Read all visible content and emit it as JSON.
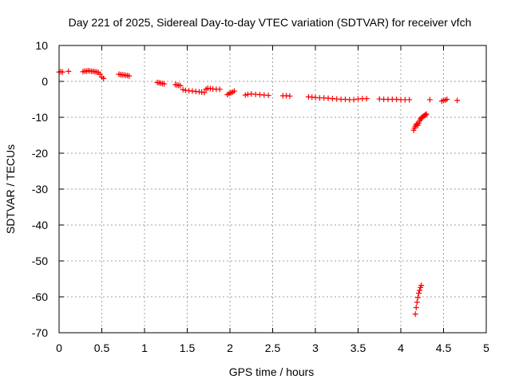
{
  "chart_data": {
    "type": "scatter",
    "title": "Day 221 of 2025, Sidereal Day-to-day VTEC variation (SDTVAR) for receiver vfch",
    "xlabel": "GPS time / hours",
    "ylabel": "SDTVAR / TECUs",
    "xlim": [
      0,
      5
    ],
    "ylim": [
      -70,
      10
    ],
    "xticks": [
      0,
      0.5,
      1,
      1.5,
      2,
      2.5,
      3,
      3.5,
      4,
      4.5,
      5
    ],
    "xtick_labels": [
      "0",
      "0.5",
      "1",
      "1.5",
      "2",
      "2.5",
      "3",
      "3.5",
      "4",
      "4.5",
      "5"
    ],
    "yticks": [
      10,
      0,
      -10,
      -20,
      -30,
      -40,
      -50,
      -60,
      -70
    ],
    "ytick_labels": [
      "10",
      "0",
      "-10",
      "-20",
      "-30",
      "-40",
      "-50",
      "-60",
      "-70"
    ],
    "grid": true,
    "marker": "+",
    "color": "#ff0000",
    "series": [
      {
        "name": "vfch",
        "x": [
          0.0,
          0.02,
          0.04,
          0.11,
          0.28,
          0.3,
          0.32,
          0.34,
          0.36,
          0.38,
          0.4,
          0.42,
          0.44,
          0.46,
          0.48,
          0.5,
          0.52,
          0.7,
          0.72,
          0.74,
          0.76,
          0.78,
          0.8,
          0.82,
          1.15,
          1.17,
          1.19,
          1.21,
          1.23,
          1.36,
          1.38,
          1.4,
          1.42,
          1.45,
          1.48,
          1.52,
          1.56,
          1.6,
          1.64,
          1.67,
          1.7,
          1.72,
          1.74,
          1.77,
          1.8,
          1.84,
          1.88,
          1.97,
          1.99,
          2.01,
          2.03,
          2.05,
          2.18,
          2.21,
          2.25,
          2.3,
          2.35,
          2.4,
          2.45,
          2.62,
          2.66,
          2.7,
          2.92,
          2.96,
          3.0,
          3.05,
          3.1,
          3.15,
          3.2,
          3.25,
          3.3,
          3.35,
          3.4,
          3.45,
          3.5,
          3.55,
          3.6,
          3.75,
          3.8,
          3.85,
          3.9,
          3.95,
          4.0,
          4.05,
          4.1,
          4.15,
          4.16,
          4.17,
          4.18,
          4.19,
          4.2,
          4.21,
          4.22,
          4.23,
          4.24,
          4.25,
          4.26,
          4.27,
          4.28,
          4.29,
          4.3,
          4.34,
          4.48,
          4.5,
          4.52,
          4.54,
          4.66,
          4.17,
          4.18,
          4.19,
          4.2,
          4.21,
          4.22,
          4.23,
          4.24
        ],
        "y": [
          2.6,
          2.7,
          2.6,
          2.8,
          2.7,
          2.9,
          2.8,
          3.0,
          2.9,
          2.8,
          2.8,
          2.7,
          2.6,
          2.5,
          2.0,
          1.2,
          0.8,
          2.0,
          1.9,
          1.8,
          1.8,
          1.7,
          1.6,
          1.5,
          -0.3,
          -0.4,
          -0.5,
          -0.6,
          -0.7,
          -0.9,
          -1.0,
          -1.1,
          -1.2,
          -2.3,
          -2.5,
          -2.6,
          -2.7,
          -2.8,
          -2.9,
          -3.0,
          -3.1,
          -2.2,
          -1.9,
          -2.0,
          -2.1,
          -2.2,
          -2.2,
          -3.7,
          -3.4,
          -3.2,
          -3.0,
          -2.7,
          -3.8,
          -3.6,
          -3.5,
          -3.6,
          -3.7,
          -3.8,
          -3.9,
          -4.0,
          -4.0,
          -4.1,
          -4.3,
          -4.4,
          -4.5,
          -4.6,
          -4.6,
          -4.7,
          -4.8,
          -4.9,
          -5.0,
          -5.0,
          -5.1,
          -5.1,
          -4.9,
          -4.8,
          -4.8,
          -4.9,
          -5.0,
          -5.0,
          -5.0,
          -5.0,
          -5.1,
          -5.1,
          -5.1,
          -13.6,
          -13.0,
          -12.5,
          -12.0,
          -11.8,
          -12.2,
          -11.6,
          -11.0,
          -10.5,
          -10.2,
          -10.0,
          -9.8,
          -9.6,
          -9.5,
          -9.3,
          -9.1,
          -5.1,
          -5.5,
          -5.3,
          -5.2,
          -5.0,
          -5.3,
          -64.8,
          -63.0,
          -61.5,
          -60.2,
          -59.0,
          -58.2,
          -57.4,
          -56.8
        ]
      }
    ]
  }
}
